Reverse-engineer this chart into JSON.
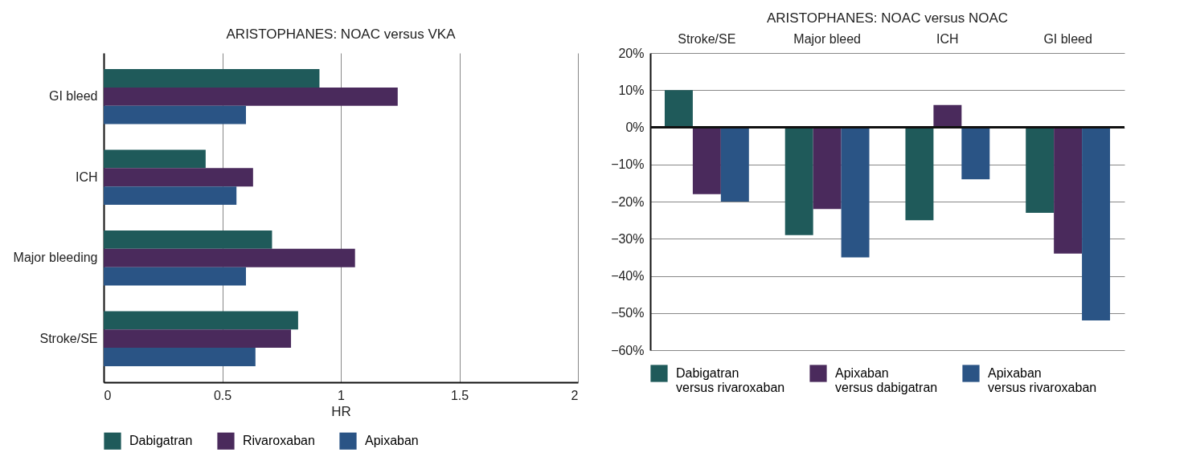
{
  "chart_data": [
    {
      "type": "bar",
      "orientation": "horizontal",
      "title": "ARISTOPHANES: NOAC versus VKA",
      "xlabel": "HR",
      "categories": [
        "GI bleed",
        "ICH",
        "Major bleeding",
        "Stroke/SE"
      ],
      "series": [
        {
          "name": "Dabigatran",
          "color": "#1f5a5a",
          "values": [
            0.91,
            0.43,
            0.71,
            0.82
          ]
        },
        {
          "name": "Rivaroxaban",
          "color": "#4a2a5c",
          "values": [
            1.24,
            0.63,
            1.06,
            0.79
          ]
        },
        {
          "name": "Apixaban",
          "color": "#2a5485",
          "values": [
            0.6,
            0.56,
            0.6,
            0.64
          ]
        }
      ],
      "xlim": [
        0,
        2
      ],
      "xticks": [
        0,
        0.5,
        1,
        1.5,
        2
      ],
      "grid": "x",
      "legend": "bottom"
    },
    {
      "type": "bar",
      "title": "ARISTOPHANES: NOAC versus NOAC",
      "categories": [
        "Stroke/SE",
        "Major bleed",
        "ICH",
        "GI bleed"
      ],
      "series": [
        {
          "name": "Dabigatran versus rivaroxaban",
          "color": "#1f5a5a",
          "values": [
            10,
            -29,
            -25,
            -23
          ]
        },
        {
          "name": "Apixaban versus dabigatran",
          "color": "#4a2a5c",
          "values": [
            -18,
            -22,
            6,
            -34
          ]
        },
        {
          "name": "Apixaban versus rivaroxaban",
          "color": "#2a5485",
          "values": [
            -20,
            -35,
            -14,
            -52
          ]
        }
      ],
      "ylim": [
        -60,
        20
      ],
      "yticks": [
        {
          "value": 20,
          "label": "20%"
        },
        {
          "value": 10,
          "label": "10%"
        },
        {
          "value": 0,
          "label": "0%"
        },
        {
          "value": -10,
          "label": "−10%"
        },
        {
          "value": -20,
          "label": "−20%"
        },
        {
          "value": -30,
          "label": "−30%"
        },
        {
          "value": -40,
          "label": "−40%"
        },
        {
          "value": -50,
          "label": "−50%"
        },
        {
          "value": -60,
          "label": "−60%"
        }
      ],
      "grid": "y",
      "legend": "bottom"
    }
  ]
}
